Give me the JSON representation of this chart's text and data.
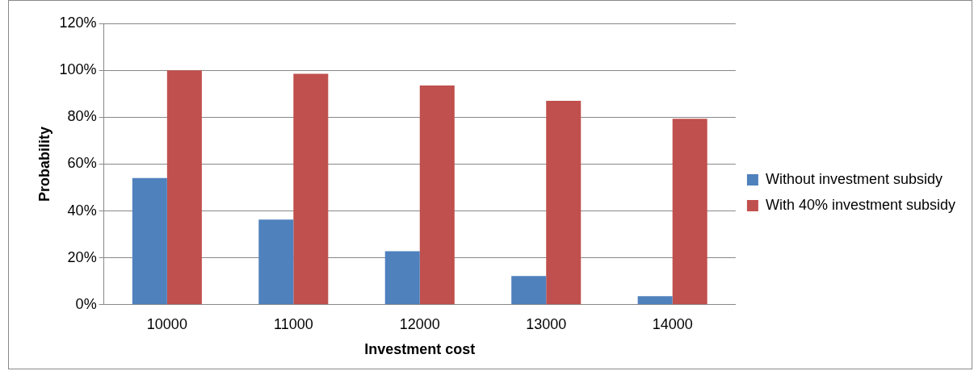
{
  "chart_data": {
    "type": "bar",
    "xlabel": "Investment cost",
    "ylabel": "Probability",
    "categories": [
      "10000",
      "11000",
      "12000",
      "13000",
      "14000"
    ],
    "series": [
      {
        "name": "Without investment subsidy",
        "color": "#4f81bd",
        "values": [
          54,
          36.3,
          22.8,
          12.2,
          3.6
        ]
      },
      {
        "name": "With 40% investment subsidy",
        "color": "#c0504d",
        "values": [
          100,
          98.5,
          93.5,
          87,
          79.3
        ]
      }
    ],
    "ylim": [
      0,
      120
    ],
    "yticks": [
      {
        "value": 0,
        "label": "0%"
      },
      {
        "value": 20,
        "label": "20%"
      },
      {
        "value": 40,
        "label": "40%"
      },
      {
        "value": 60,
        "label": "60%"
      },
      {
        "value": 80,
        "label": "80%"
      },
      {
        "value": 100,
        "label": "100%"
      },
      {
        "value": 120,
        "label": "120%"
      }
    ],
    "grid": "y",
    "legend": "right"
  }
}
